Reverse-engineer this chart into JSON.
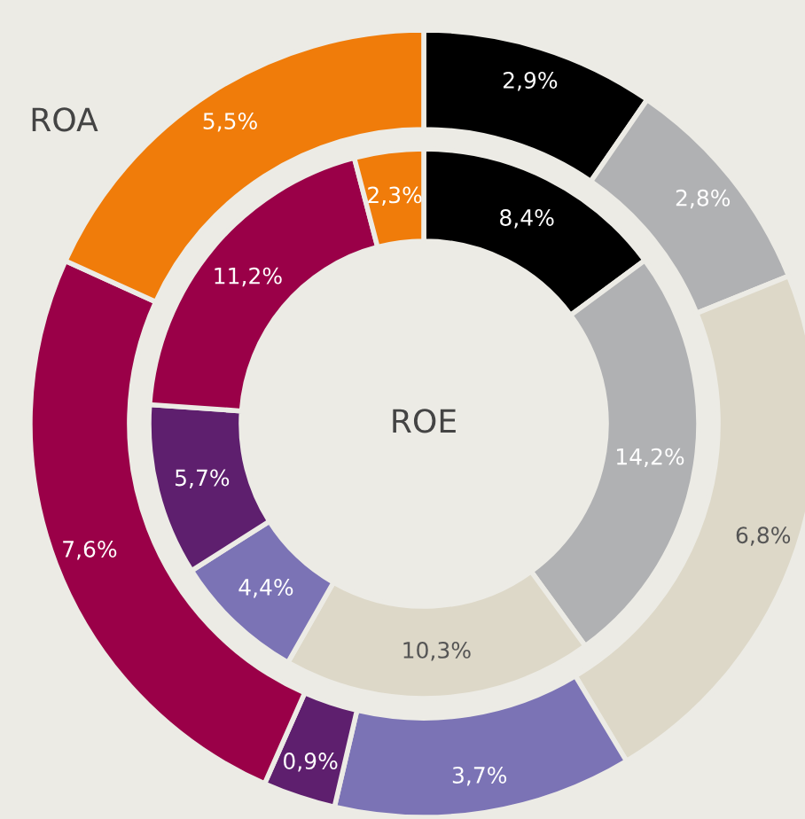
{
  "chart_data": {
    "type": "donut",
    "categories": [
      null,
      null,
      null,
      null,
      null,
      null,
      null
    ],
    "legend": false,
    "series": [
      {
        "name": "ROA",
        "values": [
          2.9,
          2.8,
          6.8,
          3.7,
          0.9,
          7.6,
          5.5
        ],
        "value_labels": [
          "2,9%",
          "2,8%",
          "6,8%",
          "3,7%",
          "0,9%",
          "7,6%",
          "5,5%"
        ],
        "colors": [
          "#000000",
          "#b0b1b3",
          "#ddd8c8",
          "#7b73b5",
          "#5e1f6e",
          "#9a0048",
          "#f07c0a"
        ]
      },
      {
        "name": "ROE",
        "values": [
          8.4,
          14.2,
          10.3,
          4.4,
          5.7,
          11.2,
          2.3
        ],
        "value_labels": [
          "8,4%",
          "14,2%",
          "10,3%",
          "4,4%",
          "5,7%",
          "11,2%",
          "2,3%"
        ],
        "colors": [
          "#000000",
          "#b0b1b3",
          "#ddd8c8",
          "#7b73b5",
          "#5e1f6e",
          "#9a0048",
          "#f07c0a"
        ]
      }
    ]
  }
}
